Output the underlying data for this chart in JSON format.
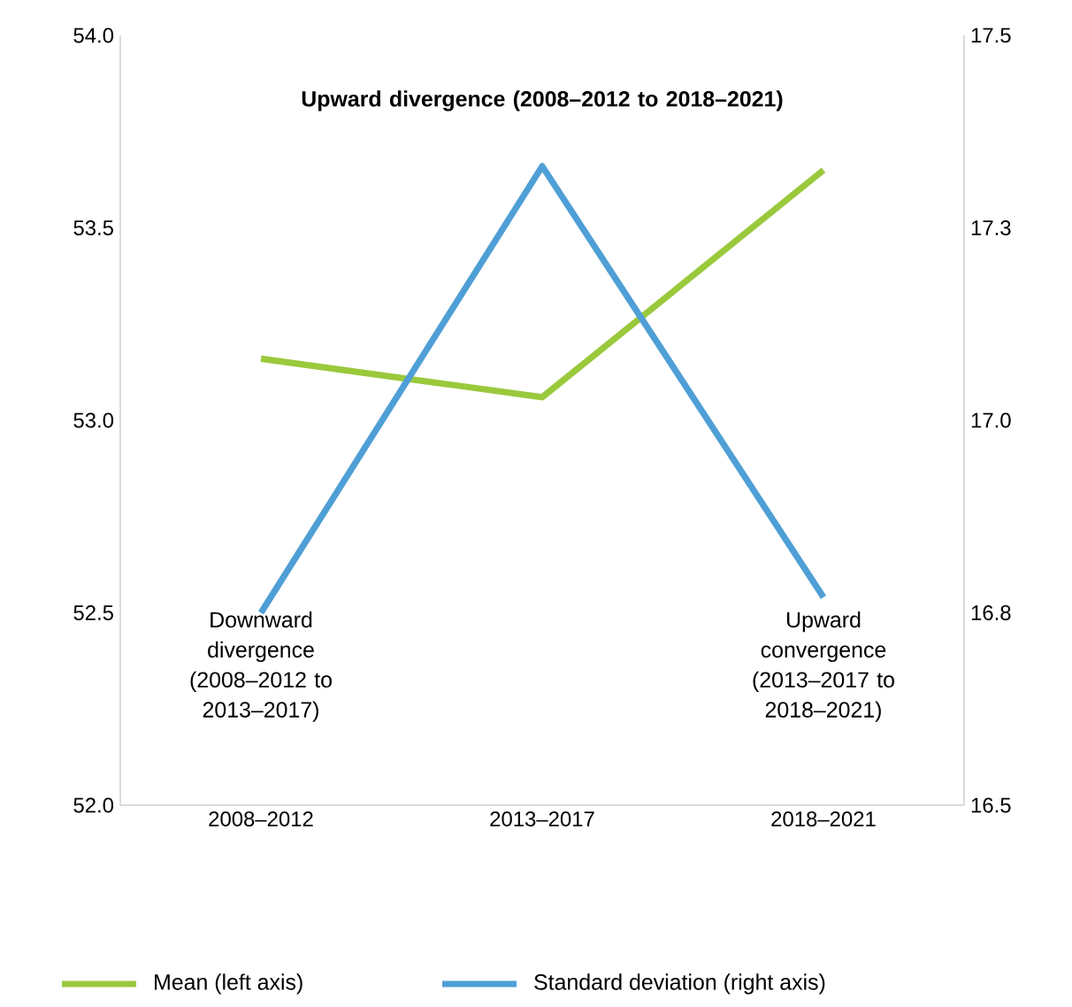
{
  "chart_data": {
    "type": "line",
    "categories": [
      "2008–2012",
      "2013–2017",
      "2018–2021"
    ],
    "series": [
      {
        "name": "Mean (left axis)",
        "color": "#9ac93c",
        "values": [
          53.16,
          53.06,
          53.65
        ]
      },
      {
        "name": "Standard deviation (right axis)",
        "color": "#4f9fd6",
        "values": [
          16.75,
          17.33,
          16.77
        ],
        "axis": "y2"
      }
    ],
    "ylim": [
      52,
      54
    ],
    "yticks": [
      {
        "value": 52,
        "label": "52.0"
      },
      {
        "value": 52.5,
        "label": "52.5"
      },
      {
        "value": 53,
        "label": "53.0"
      },
      {
        "value": 53.5,
        "label": "53.5"
      },
      {
        "value": 54,
        "label": "54.0"
      }
    ],
    "y2lim": [
      16.5,
      17.5
    ],
    "y2ticks": [
      {
        "value": 16.5,
        "label": "16.5"
      },
      {
        "value": 16.75,
        "label": "16.8"
      },
      {
        "value": 17,
        "label": "17.0"
      },
      {
        "value": 17.25,
        "label": "17.3"
      },
      {
        "value": 17.5,
        "label": "17.5"
      }
    ],
    "annotations": [
      "Upward divergence (2008–2012 to 2018–2021)",
      "Downward divergence (2008–2012 to 2013–2017)",
      "Upward convergence (2013–2017 to 2018–2021)"
    ],
    "legend": "bottom",
    "grid": false,
    "marker": "none",
    "line_style": "solid"
  }
}
